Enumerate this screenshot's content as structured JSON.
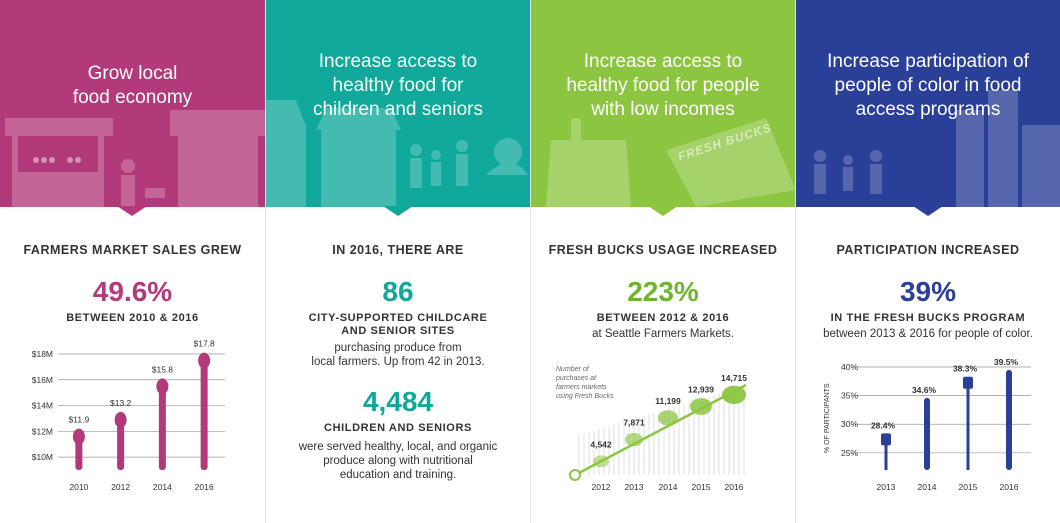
{
  "colors": {
    "magenta": "#b23a7a",
    "teal": "#0fa89a",
    "lime": "#8cc641",
    "navy": "#2a3f98",
    "green_text": "#6fb52c"
  },
  "panels": [
    {
      "banner": "Grow local\nfood economy",
      "heading": "FARMERS MARKET SALES GREW",
      "big": "49.6%",
      "sub": "BETWEEN 2010 & 2016"
    },
    {
      "banner": "Increase access to\nhealthy food for\nchildren and seniors",
      "heading": "IN 2016, THERE ARE",
      "big1": "86",
      "sub1": "CITY-SUPPORTED CHILDCARE\nAND SENIOR SITES",
      "text1": "purchasing produce from\nlocal farmers. Up from 42 in 2013.",
      "big2": "4,484",
      "sub2": "CHILDREN AND SENIORS",
      "text2": "were served healthy, local, and organic\nproduce along with nutritional\neducation and training."
    },
    {
      "banner": "Increase access to\nhealthy food for people\nwith low incomes",
      "heading": "FRESH BUCKS USAGE INCREASED",
      "big": "223%",
      "sub": "BETWEEN 2012 & 2016",
      "text": "at Seattle Farmers Markets.",
      "ticket_label": "FRESH BUCKS"
    },
    {
      "banner": "Increase participation of\npeople of color in food\naccess programs",
      "heading": "PARTICIPATION INCREASED",
      "big": "39%",
      "sub": "IN THE FRESH BUCKS PROGRAM",
      "text": "between 2013 & 2016 for people of color."
    }
  ],
  "chart_data": [
    {
      "type": "bar",
      "categories": [
        "2010",
        "2012",
        "2014",
        "2016"
      ],
      "values": [
        11.9,
        13.2,
        15.8,
        17.8
      ],
      "value_labels": [
        "$11.9",
        "$13.2",
        "$15.8",
        "$17.8"
      ],
      "y_ticks": [
        "$10M",
        "$12M",
        "$14M",
        "$16M",
        "$18M"
      ],
      "ylim": [
        9,
        18
      ],
      "grid": true
    },
    {
      "type": "line",
      "categories": [
        "2012",
        "2013",
        "2014",
        "2015",
        "2016"
      ],
      "values": [
        4542,
        7871,
        11199,
        12939,
        14715
      ],
      "value_labels": [
        "4,542",
        "7,871",
        "11,199",
        "12,939",
        "14,715"
      ],
      "annotation": "Number of\npurchases at\nfarmers markets\nusing Fresh Bucks",
      "grid": false
    },
    {
      "type": "bar",
      "categories": [
        "2013",
        "2014",
        "2015",
        "2016"
      ],
      "values": [
        28.4,
        34.6,
        38.3,
        39.5
      ],
      "value_labels": [
        "28.4%",
        "34.6%",
        "38.3%",
        "39.5%"
      ],
      "y_ticks": [
        "25%",
        "30%",
        "35%",
        "40%"
      ],
      "ylabel": "% OF PARTICIPANTS",
      "ylim": [
        22,
        40
      ],
      "grid": true
    }
  ]
}
